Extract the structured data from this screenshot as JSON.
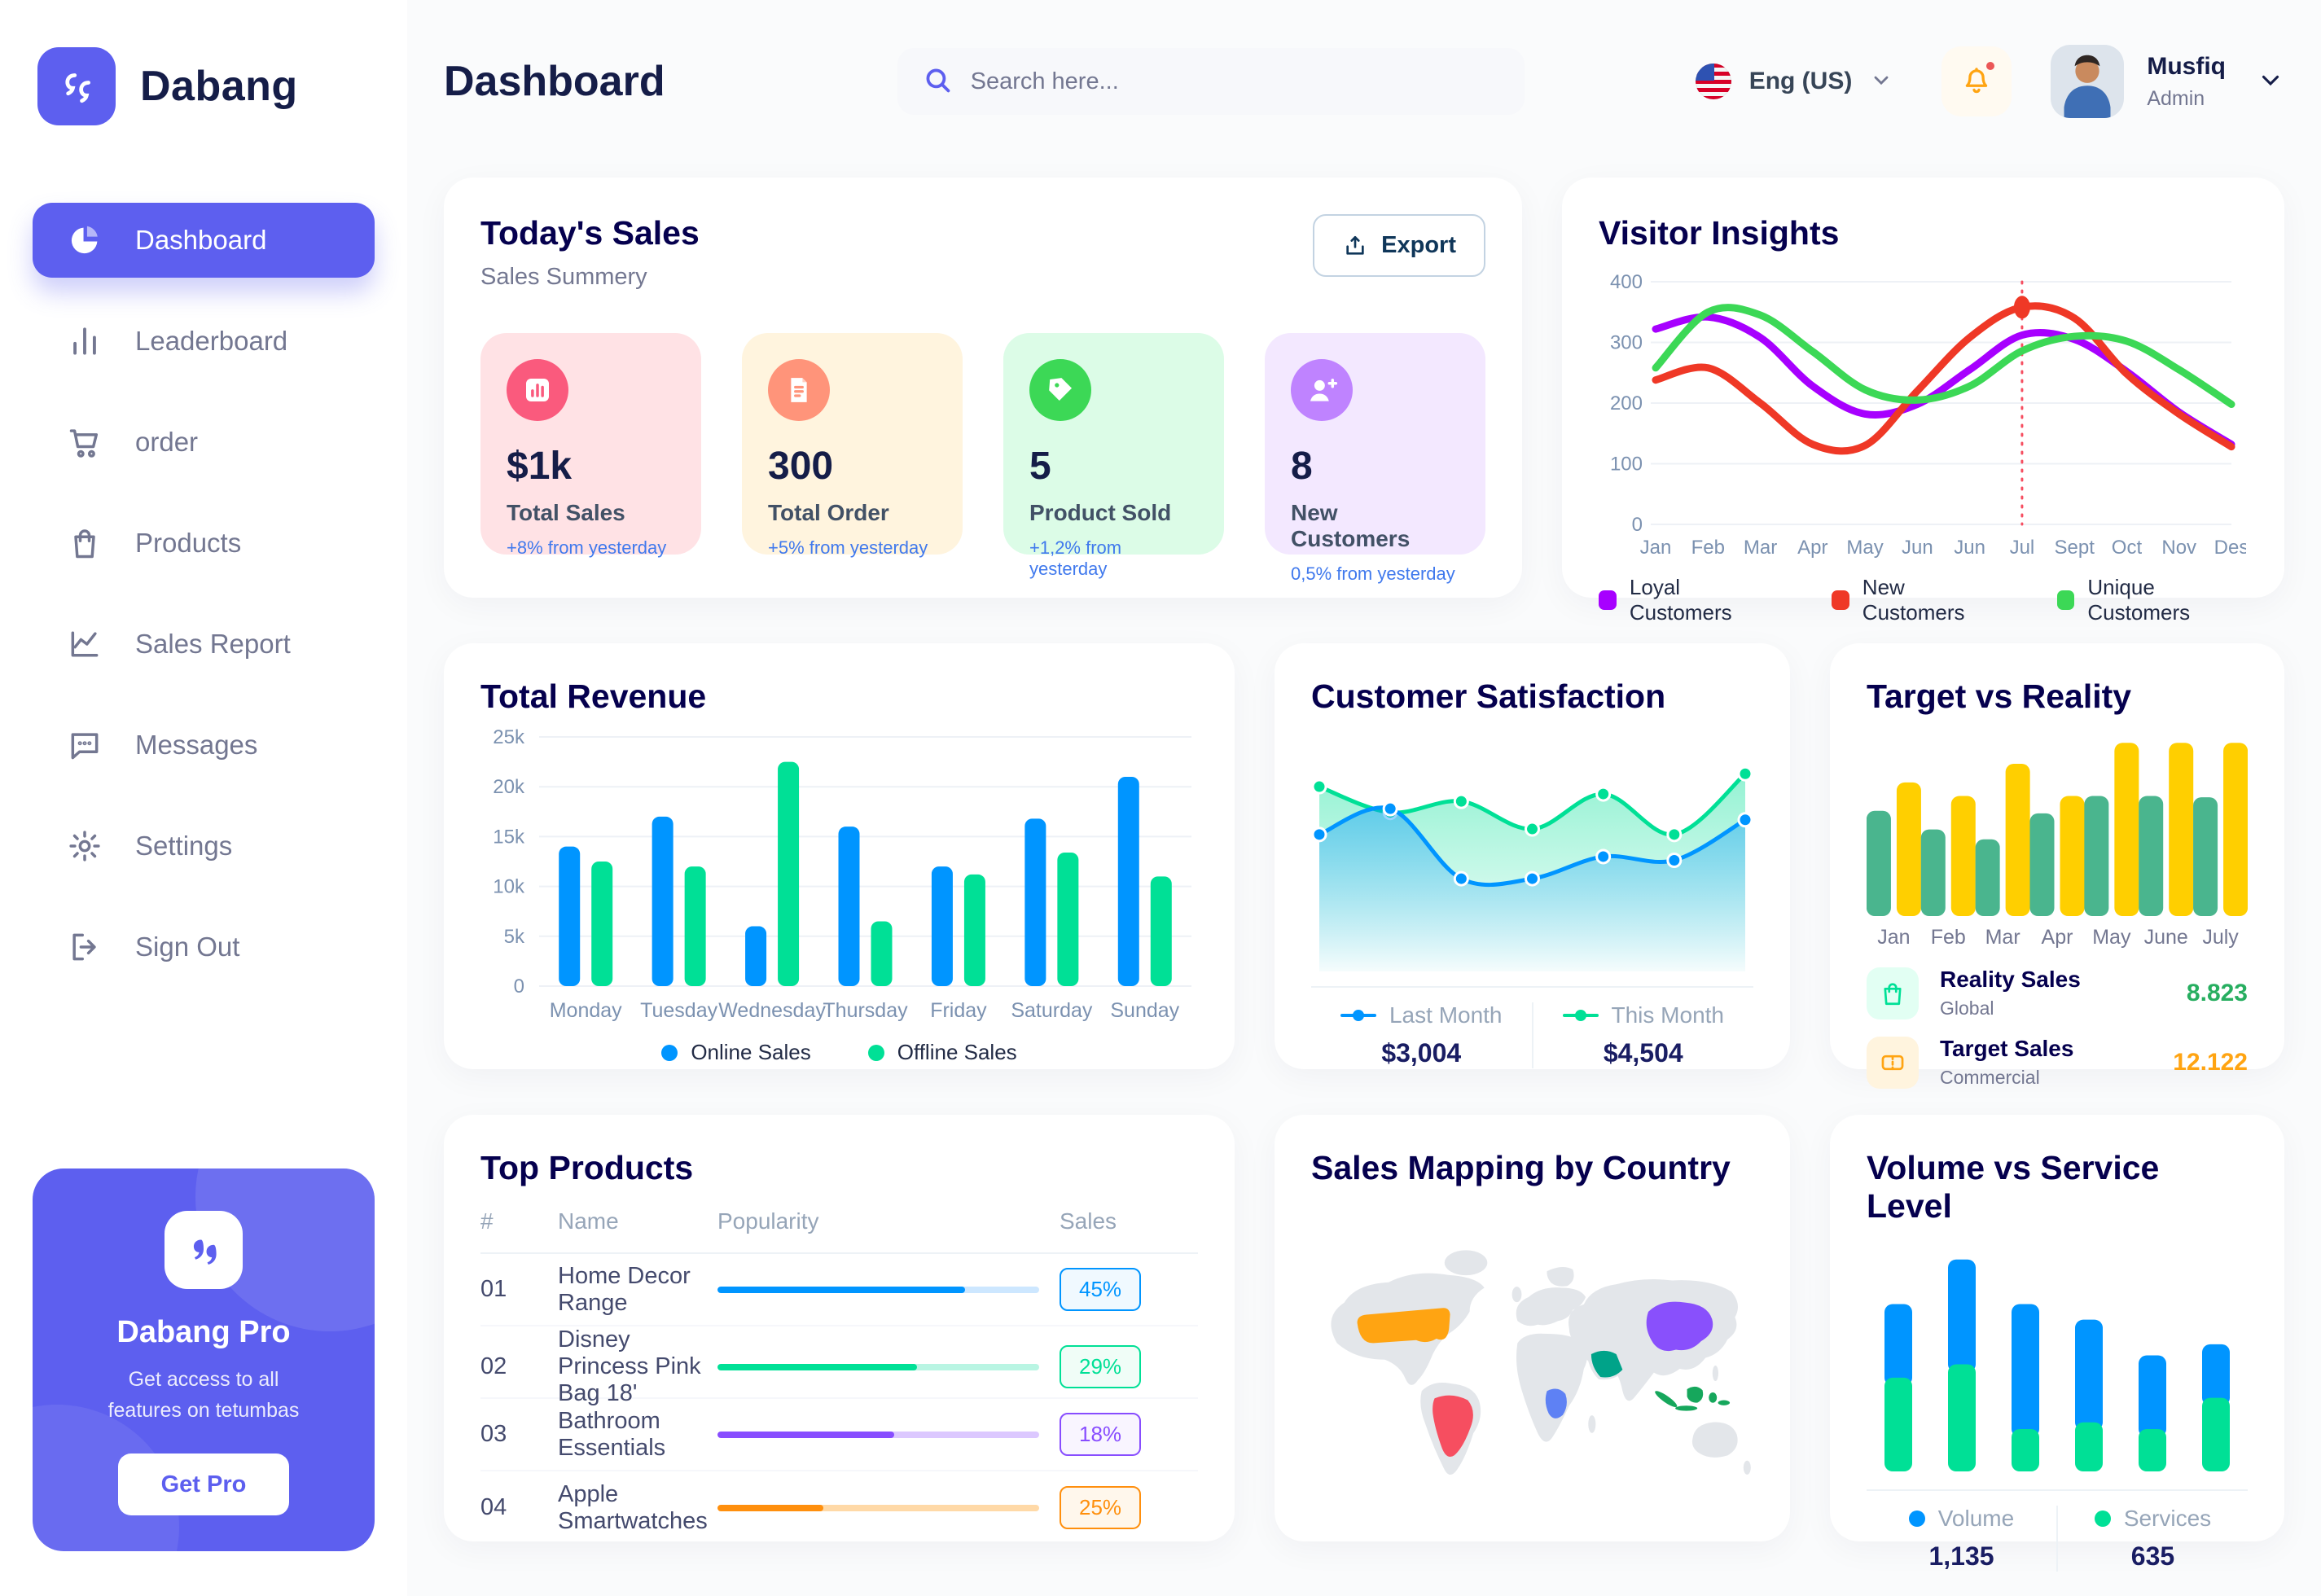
{
  "sidebar": {
    "brand": "Dabang",
    "items": [
      {
        "id": "dashboard",
        "label": "Dashboard",
        "icon": "dashboard",
        "active": true
      },
      {
        "id": "leaderboard",
        "label": "Leaderboard",
        "icon": "leaderboard",
        "active": false
      },
      {
        "id": "order",
        "label": "order",
        "icon": "cart",
        "active": false
      },
      {
        "id": "products",
        "label": "Products",
        "icon": "bag",
        "active": false
      },
      {
        "id": "sales-report",
        "label": "Sales Report",
        "icon": "chart-line",
        "active": false
      },
      {
        "id": "messages",
        "label": "Messages",
        "icon": "chat",
        "active": false
      },
      {
        "id": "settings",
        "label": "Settings",
        "icon": "gear",
        "active": false
      },
      {
        "id": "sign-out",
        "label": "Sign Out",
        "icon": "signout",
        "active": false
      }
    ],
    "pro": {
      "title": "Dabang Pro",
      "subtitle": "Get access to all features on tetumbas",
      "button_label": "Get Pro"
    }
  },
  "header": {
    "title": "Dashboard",
    "search_placeholder": "Search here...",
    "language": "Eng (US)",
    "user": {
      "name": "Musfiq",
      "role": "Admin"
    }
  },
  "todays_sales": {
    "title": "Today's Sales",
    "subtitle": "Sales Summery",
    "export_label": "Export",
    "cards": [
      {
        "value": "$1k",
        "label": "Total Sales",
        "delta": "+8% from yesterday",
        "bg": "#FFE2E5",
        "icon_bg": "#FA5A7D",
        "icon": "bar-chart-icon"
      },
      {
        "value": "300",
        "label": "Total Order",
        "delta": "+5% from yesterday",
        "bg": "#FFF4DE",
        "icon_bg": "#FF947A",
        "icon": "receipt-icon"
      },
      {
        "value": "5",
        "label": "Product Sold",
        "delta": "+1,2% from yesterday",
        "bg": "#DCFCE7",
        "icon_bg": "#3CD856",
        "icon": "tag-icon"
      },
      {
        "value": "8",
        "label": "New Customers",
        "delta": "0,5% from yesterday",
        "bg": "#F3E8FF",
        "icon_bg": "#BF83FF",
        "icon": "user-plus-icon"
      }
    ]
  },
  "chart_data": [
    {
      "id": "visitor-insights",
      "type": "line",
      "title": "Visitor Insights",
      "x": [
        "Jan",
        "Feb",
        "Mar",
        "Apr",
        "May",
        "Jun",
        "Jun",
        "Jul",
        "Sept",
        "Oct",
        "Nov",
        "Des"
      ],
      "ylim": [
        0,
        400
      ],
      "yticks": [
        0,
        100,
        200,
        300,
        400
      ],
      "grid": true,
      "legend_position": "bottom",
      "vline": {
        "index": 7,
        "color": "#F64E60"
      },
      "marker": {
        "series": 1,
        "index": 7
      },
      "series": [
        {
          "name": "Loyal Customers",
          "color": "#A700FF",
          "values": [
            322,
            342,
            308,
            228,
            182,
            198,
            255,
            312,
            305,
            252,
            185,
            132
          ]
        },
        {
          "name": "New Customers",
          "color": "#EF3826",
          "values": [
            238,
            258,
            200,
            132,
            130,
            220,
            308,
            358,
            340,
            248,
            182,
            128
          ]
        },
        {
          "name": "Unique Customers",
          "color": "#3CD856",
          "values": [
            258,
            350,
            345,
            285,
            222,
            205,
            228,
            286,
            310,
            302,
            255,
            198
          ]
        }
      ]
    },
    {
      "id": "total-revenue",
      "type": "grouped-bar",
      "title": "Total Revenue",
      "categories": [
        "Monday",
        "Tuesday",
        "Wednesday",
        "Thursday",
        "Friday",
        "Saturday",
        "Sunday"
      ],
      "ylim": [
        0,
        25
      ],
      "yticks": [
        0,
        5,
        10,
        15,
        20,
        25
      ],
      "ytick_labels": [
        "0",
        "5k",
        "10k",
        "15k",
        "20k",
        "25k"
      ],
      "grid": true,
      "legend_position": "bottom",
      "series": [
        {
          "name": "Online Sales",
          "color": "#0095FF",
          "values": [
            14,
            17,
            6,
            16,
            12,
            16.8,
            21
          ]
        },
        {
          "name": "Offline Sales",
          "color": "#00E096",
          "values": [
            12.5,
            12,
            22.5,
            6.5,
            11.2,
            13.4,
            11
          ]
        }
      ]
    },
    {
      "id": "customer-satisfaction",
      "type": "area",
      "title": "Customer Satisfaction",
      "x": [
        1,
        2,
        3,
        4,
        5,
        6,
        7
      ],
      "ylim": [
        0,
        115
      ],
      "grid": false,
      "legend_position": "bottom",
      "series": [
        {
          "name": "This Month",
          "color": "#00E096",
          "display_value": "$4,504",
          "values": [
            88,
            74,
            80,
            65,
            84,
            62,
            95
          ]
        },
        {
          "name": "Last Month",
          "color": "#0095FF",
          "display_value": "$3,004",
          "values": [
            62,
            76,
            38,
            38,
            50,
            48,
            70
          ]
        }
      ]
    },
    {
      "id": "target-vs-reality",
      "type": "grouped-bar-rounded",
      "title": "Target vs Reality",
      "categories": [
        "Jan",
        "Feb",
        "Mar",
        "Apr",
        "May",
        "June",
        "July"
      ],
      "ylim": [
        0,
        15
      ],
      "grid": false,
      "series": [
        {
          "name": "Reality Sales",
          "color": "#4AB58E",
          "values": [
            8.5,
            7.0,
            6.2,
            8.3,
            9.7,
            9.7,
            9.6
          ]
        },
        {
          "name": "Target Sales",
          "color": "#FFCF00",
          "values": [
            10.8,
            9.7,
            12.3,
            9.7,
            14,
            14,
            14
          ]
        }
      ],
      "legend": [
        {
          "label": "Reality Sales",
          "sub": "Global",
          "value": "8.823",
          "value_color": "#27AE60",
          "icon": "bag-icon",
          "icon_bg": "#E2FFF3",
          "icon_color": "#00E096"
        },
        {
          "label": "Target Sales",
          "sub": "Commercial",
          "value": "12.122",
          "value_color": "#FFA412",
          "icon": "ticket-icon",
          "icon_bg": "#FFF4DE",
          "icon_color": "#FFA412"
        }
      ]
    },
    {
      "id": "volume-service",
      "type": "stacked-bar",
      "title": "Volume vs Service Level",
      "ylim": [
        0,
        100
      ],
      "grid": false,
      "legend_position": "bottom",
      "series": [
        {
          "name": "Volume",
          "color": "#0095FF",
          "display_value": "1,135",
          "values": [
            33,
            47,
            56,
            46,
            33,
            24
          ]
        },
        {
          "name": "Services",
          "color": "#00E096",
          "display_value": "635",
          "values": [
            42,
            48,
            19,
            22,
            19,
            33
          ]
        }
      ]
    }
  ],
  "top_products": {
    "title": "Top Products",
    "headers": [
      "#",
      "Name",
      "Popularity",
      "Sales"
    ],
    "rows": [
      {
        "num": "01",
        "name": "Home Decor Range",
        "popularity": 77,
        "color": "#0095FF",
        "track": "#CDE7FF",
        "sales": "45%",
        "badge_bg": "#F0F9FF"
      },
      {
        "num": "02",
        "name": "Disney Princess Pink Bag 18'",
        "popularity": 62,
        "color": "#00E096",
        "track": "#B9F5E3",
        "sales": "29%",
        "badge_bg": "#F0FDF7"
      },
      {
        "num": "03",
        "name": "Bathroom Essentials",
        "popularity": 55,
        "color": "#884DFF",
        "track": "#DCC8FF",
        "sales": "18%",
        "badge_bg": "#F9F5FF"
      },
      {
        "num": "04",
        "name": "Apple Smartwatches",
        "popularity": 33,
        "color": "#FF8F0D",
        "track": "#FFD9A7",
        "sales": "25%",
        "badge_bg": "#FFF7EC"
      }
    ]
  },
  "sales_map": {
    "title": "Sales Mapping by Country",
    "land_color": "#E3E6EA",
    "countries": [
      {
        "name": "United States",
        "color": "#FFA412"
      },
      {
        "name": "Brazil",
        "color": "#F64E60"
      },
      {
        "name": "Saudi Arabia",
        "color": "#00A389"
      },
      {
        "name": "DR Congo",
        "color": "#5E81F4"
      },
      {
        "name": "China",
        "color": "#8950FC"
      },
      {
        "name": "Indonesia",
        "color": "#16A75C"
      }
    ]
  },
  "theme": {
    "accent": "#5D5FEF",
    "title_color": "#05004E",
    "muted": "#737791",
    "delta_blue": "#4079ED",
    "bell_color": "#FFA412",
    "notification_color": "#EB5757"
  }
}
